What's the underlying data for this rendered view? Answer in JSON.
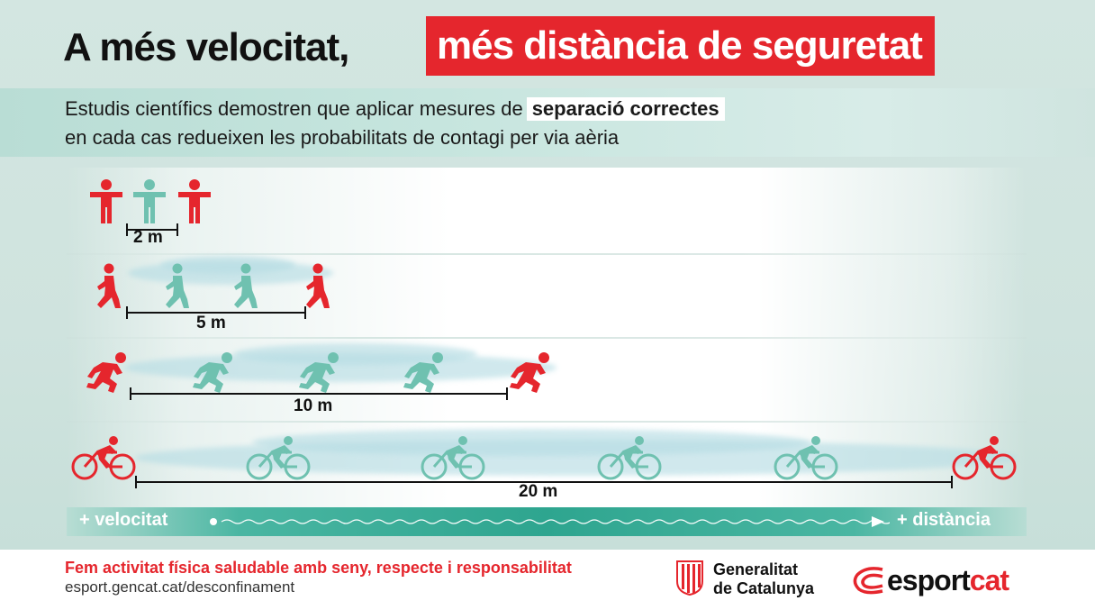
{
  "title": {
    "part1": "A més velocitat,",
    "part2": "més distància de seguretat"
  },
  "subtitle": {
    "line1_prefix": "Estudis científics demostren que aplicar mesures de",
    "line1_highlight": "separació correctes",
    "line2": "en cada cas redueixen les probabilitats de contagi per via aèria"
  },
  "rows": [
    {
      "activity": "standing",
      "distance_label": "2 m"
    },
    {
      "activity": "walking",
      "distance_label": "5 m"
    },
    {
      "activity": "running",
      "distance_label": "10 m"
    },
    {
      "activity": "cycling",
      "distance_label": "20 m"
    }
  ],
  "scale": {
    "left_label": "+ velocitat",
    "right_label": "+ distància"
  },
  "footer": {
    "slogan": "Fem activitat física saludable amb seny, respecte i responsabilitat",
    "url": "esport.gencat.cat/desconfinament",
    "generalitat_line1": "Generalitat",
    "generalitat_line2": "de Catalunya",
    "esport_part1": "esport",
    "esport_part2": "cat"
  },
  "colors": {
    "accent_red": "#e5262d",
    "figure_teal": "#6fc1b0",
    "band_teal": "#2ea58f"
  },
  "icons": [
    "standing-person-icon",
    "walking-person-icon",
    "running-person-icon",
    "cyclist-icon",
    "generalitat-shield-icon",
    "esportcat-logo-icon",
    "arrow-right-icon"
  ]
}
